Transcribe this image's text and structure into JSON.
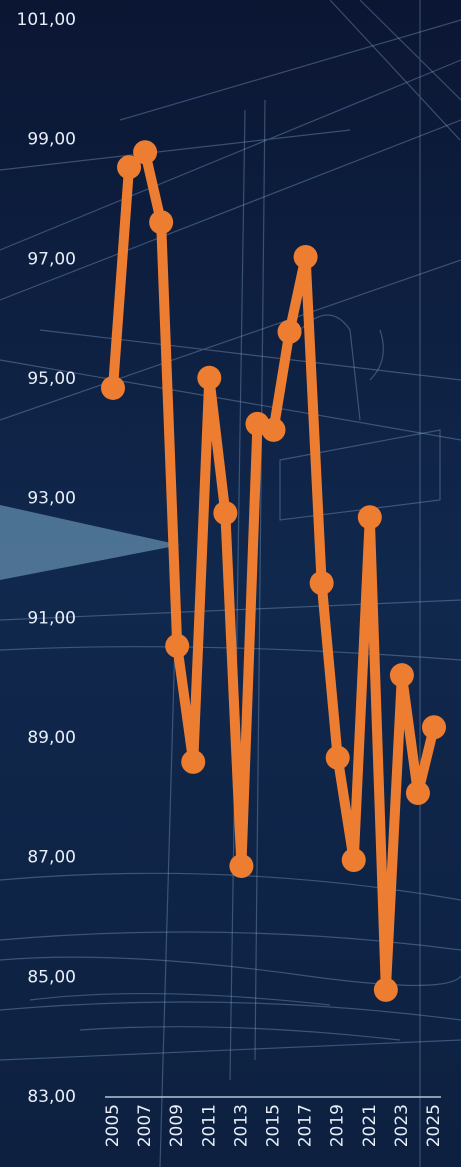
{
  "chart_data": {
    "type": "line",
    "x": [
      2005,
      2006,
      2007,
      2008,
      2009,
      2010,
      2011,
      2012,
      2013,
      2014,
      2015,
      2016,
      2017,
      2018,
      2019,
      2020,
      2021,
      2022,
      2023,
      2024,
      2025
    ],
    "series": [
      {
        "color": "#ed7d31",
        "values": [
          94.85,
          98.54,
          98.79,
          97.62,
          90.54,
          88.6,
          95.02,
          92.76,
          86.86,
          94.25,
          94.15,
          95.79,
          97.04,
          91.59,
          88.67,
          86.96,
          92.69,
          84.79,
          90.05,
          88.08,
          89.18
        ]
      }
    ],
    "xlim": [
      2005,
      2025
    ],
    "xticks": [
      2005,
      2007,
      2009,
      2011,
      2013,
      2015,
      2017,
      2019,
      2021,
      2023,
      2025
    ],
    "ylim": [
      83,
      101
    ],
    "yticks": [
      {
        "value": 83,
        "label": "83,00"
      },
      {
        "value": 85,
        "label": "85,00"
      },
      {
        "value": 87,
        "label": "87,00"
      },
      {
        "value": 89,
        "label": "89,00"
      },
      {
        "value": 91,
        "label": "91,00"
      },
      {
        "value": 93,
        "label": "93,00"
      },
      {
        "value": 95,
        "label": "95,00"
      },
      {
        "value": 97,
        "label": "97,00"
      },
      {
        "value": 99,
        "label": "99,00"
      },
      {
        "value": 101,
        "label": "101,00"
      }
    ],
    "grid": false
  }
}
